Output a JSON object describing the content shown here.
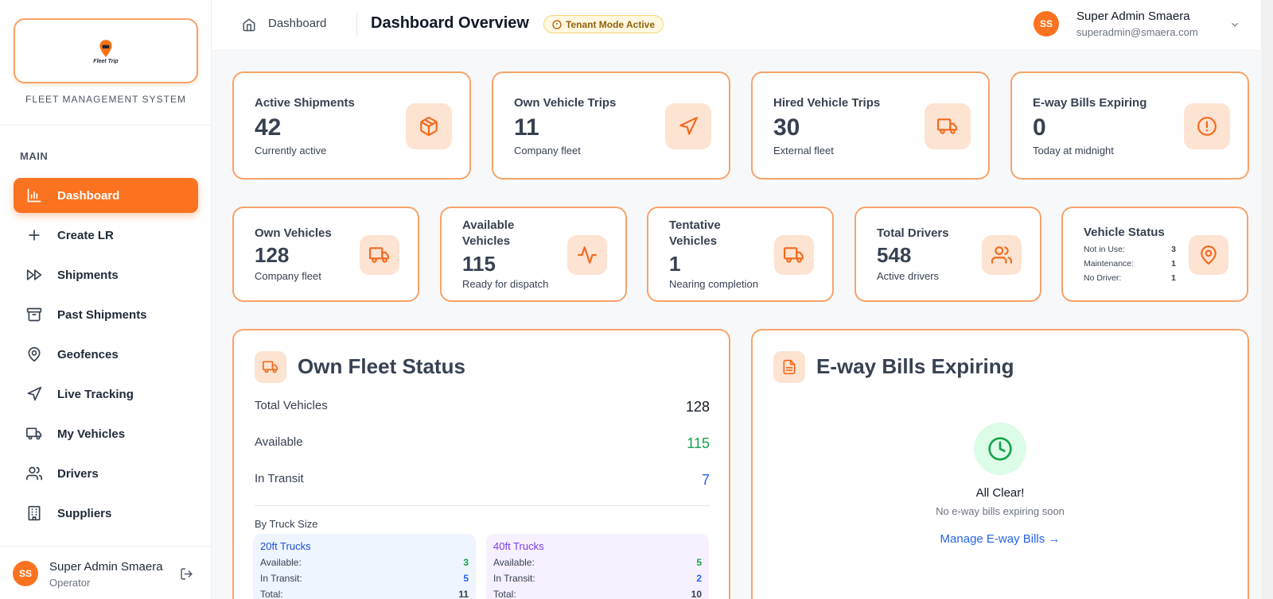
{
  "sidebar": {
    "logo_text": "Fleet Trip",
    "subtitle": "FLEET MANAGEMENT SYSTEM",
    "section": "MAIN",
    "items": [
      {
        "label": "Dashboard",
        "icon": "bar-chart-icon",
        "active": true
      },
      {
        "label": "Create LR",
        "icon": "plus-icon"
      },
      {
        "label": "Shipments",
        "icon": "fast-forward-icon"
      },
      {
        "label": "Past Shipments",
        "icon": "archive-icon"
      },
      {
        "label": "Geofences",
        "icon": "map-pin-icon"
      },
      {
        "label": "Live Tracking",
        "icon": "navigation-icon"
      },
      {
        "label": "My Vehicles",
        "icon": "truck-icon"
      },
      {
        "label": "Drivers",
        "icon": "users-icon"
      },
      {
        "label": "Suppliers",
        "icon": "building-icon"
      }
    ],
    "user": {
      "initials": "SS",
      "name": "Super Admin Smaera",
      "role": "Operator"
    }
  },
  "topbar": {
    "breadcrumb": "Dashboard",
    "title": "Dashboard Overview",
    "badge": "Tenant Mode Active",
    "user_initials": "SS",
    "user_name": "Super Admin Smaera",
    "user_email": "superadmin@smaera.com"
  },
  "stats_row1": [
    {
      "title": "Active Shipments",
      "value": "42",
      "sub": "Currently active",
      "icon": "package-icon"
    },
    {
      "title": "Own Vehicle Trips",
      "value": "11",
      "sub": "Company fleet",
      "icon": "navigation-icon"
    },
    {
      "title": "Hired Vehicle Trips",
      "value": "30",
      "sub": "External fleet",
      "icon": "truck-icon"
    },
    {
      "title": "E-way Bills Expiring",
      "value": "0",
      "sub": "Today at midnight",
      "icon": "alert-circle-icon"
    }
  ],
  "stats_row2": [
    {
      "title": "Own Vehicles",
      "value": "128",
      "sub": "Company fleet",
      "icon": "truck-icon"
    },
    {
      "title": "Available Vehicles",
      "value": "115",
      "sub": "Ready for dispatch",
      "icon": "activity-icon"
    },
    {
      "title": "Tentative Vehicles",
      "value": "1",
      "sub": "Nearing completion",
      "icon": "truck-icon"
    },
    {
      "title": "Total Drivers",
      "value": "548",
      "sub": "Active drivers",
      "icon": "users-icon"
    }
  ],
  "vehicle_status": {
    "title": "Vehicle Status",
    "rows": [
      {
        "label": "Not in Use:",
        "value": "3"
      },
      {
        "label": "Maintenance:",
        "value": "1"
      },
      {
        "label": "No Driver:",
        "value": "1"
      }
    ]
  },
  "fleet": {
    "title": "Own Fleet Status",
    "rows": [
      {
        "label": "Total Vehicles",
        "value": "128",
        "color": "#111827"
      },
      {
        "label": "Available",
        "value": "115",
        "color": "#16a34a"
      },
      {
        "label": "In Transit",
        "value": "7",
        "color": "#2563eb"
      }
    ],
    "by_size_label": "By Truck Size",
    "sizes": [
      {
        "title": "20ft Trucks",
        "available_label": "Available:",
        "available": "3",
        "transit_label": "In Transit:",
        "transit": "5",
        "total_label": "Total:",
        "total": "11"
      },
      {
        "title": "40ft Trucks",
        "available_label": "Available:",
        "available": "5",
        "transit_label": "In Transit:",
        "transit": "2",
        "total_label": "Total:",
        "total": "10"
      }
    ]
  },
  "eway": {
    "title": "E-way Bills Expiring",
    "empty_title": "All Clear!",
    "empty_sub": "No e-way bills expiring soon",
    "link": "Manage E-way Bills →"
  },
  "colors": {
    "accent": "#fb7321",
    "border": "#f6a36a",
    "tile": "#fde3d2",
    "green": "#16a34a",
    "blue": "#2563eb",
    "purple": "#7c3aed"
  }
}
